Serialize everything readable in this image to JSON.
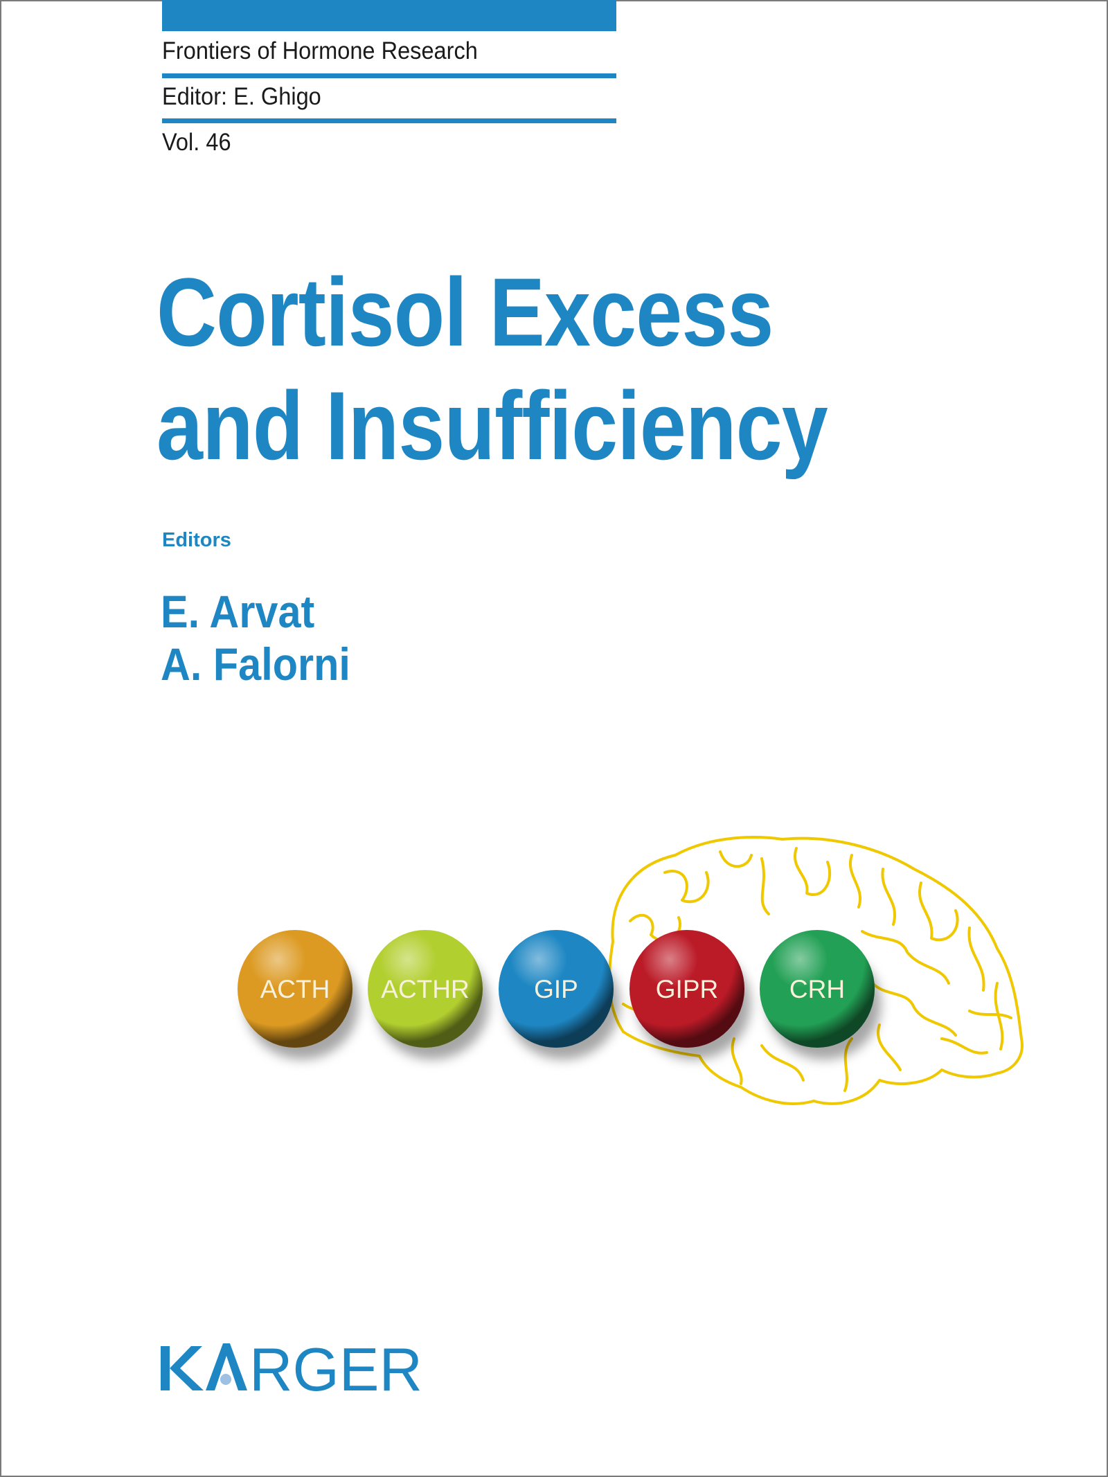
{
  "series": {
    "name": "Frontiers of Hormone Research",
    "editor": "Editor: E. Ghigo",
    "volume": "Vol. 46"
  },
  "title": {
    "line1": "Cortisol Excess",
    "line2": "and Insufficiency"
  },
  "editors": {
    "label": "Editors",
    "names": [
      "E. Arvat",
      "A. Falorni"
    ]
  },
  "illustration": {
    "balls": [
      {
        "label": "ACTH",
        "color": "#dc9a22"
      },
      {
        "label": "ACTHR",
        "color": "#b2cf30"
      },
      {
        "label": "GIP",
        "color": "#1e87c3"
      },
      {
        "label": "GIPR",
        "color": "#bb1a27"
      },
      {
        "label": "CRH",
        "color": "#22a055"
      }
    ],
    "brain_color": "#f0c800"
  },
  "publisher": {
    "logo_text": "KARGER",
    "color": "#1e87c3"
  }
}
